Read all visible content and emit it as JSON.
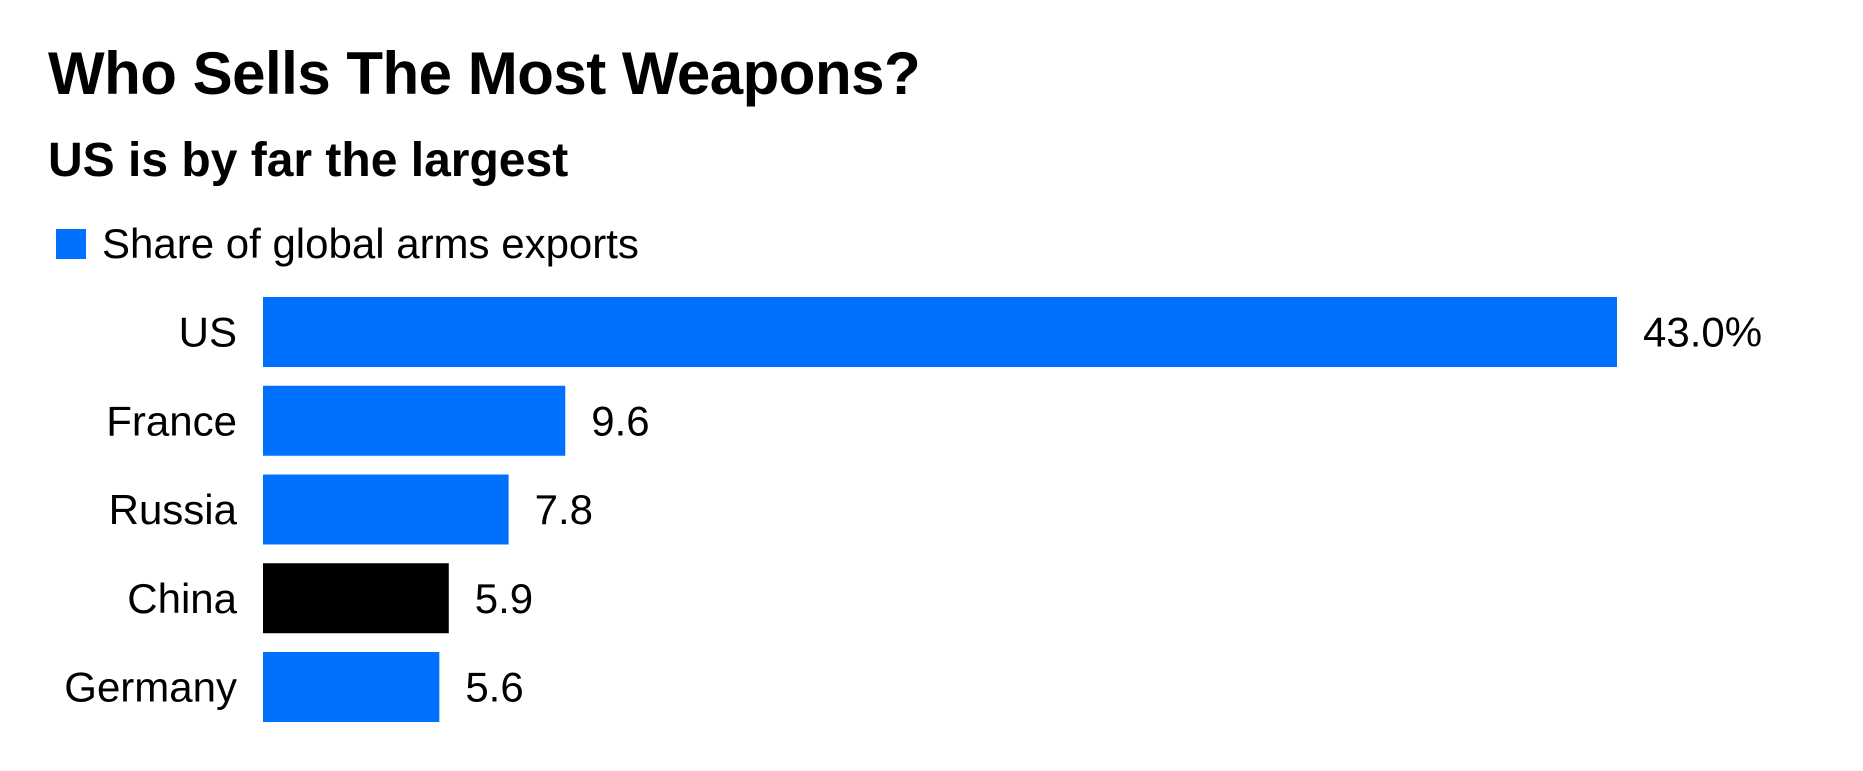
{
  "chart_data": {
    "type": "bar",
    "orientation": "horizontal",
    "title": "Who Sells The Most Weapons?",
    "subtitle": "US is by far the largest",
    "categories": [
      "US",
      "France",
      "Russia",
      "China",
      "Germany"
    ],
    "series": [
      {
        "name": "Share of global arms exports",
        "values": [
          43.0,
          9.6,
          7.8,
          5.9,
          5.6
        ],
        "value_labels": [
          "43.0%",
          "9.6",
          "7.8",
          "5.9",
          "5.6"
        ],
        "bar_colors": [
          "#0070ff",
          "#0070ff",
          "#0070ff",
          "#000000",
          "#0070ff"
        ]
      }
    ],
    "xlim": [
      0,
      43.0
    ],
    "grid": false,
    "legend_position": "top-left",
    "colors": {
      "primary": "#0070ff",
      "highlight": "#000000"
    }
  }
}
